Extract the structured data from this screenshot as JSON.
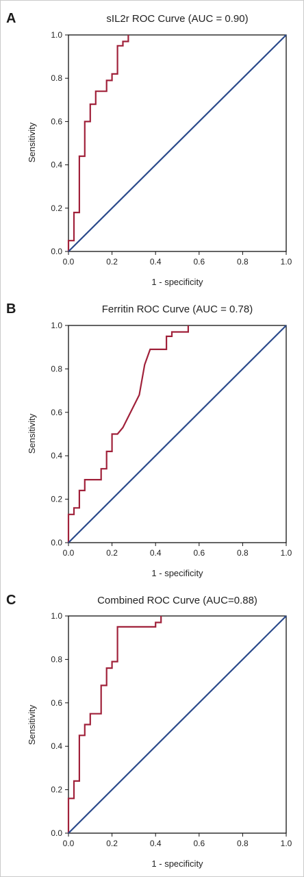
{
  "colors": {
    "roc_line": "#a0213a",
    "diagonal": "#2b4a8b",
    "axes": "#111111"
  },
  "chart_data": [
    {
      "panel_label": "A",
      "type": "line",
      "title": "sIL2r ROC Curve (AUC = 0.90)",
      "xlabel": "1 - specificity",
      "ylabel": "Sensitivity",
      "xlim": [
        0,
        1
      ],
      "ylim": [
        0,
        1
      ],
      "xticks": [
        "0.0",
        "0.2",
        "0.4",
        "0.6",
        "0.8",
        "1.0"
      ],
      "yticks": [
        "0.0",
        "0.2",
        "0.4",
        "0.6",
        "0.8",
        "1.0"
      ],
      "grid": false,
      "series": [
        {
          "role": "roc",
          "x": [
            0,
            0,
            0.025,
            0.025,
            0.05,
            0.05,
            0.075,
            0.075,
            0.1,
            0.1,
            0.125,
            0.125,
            0.175,
            0.175,
            0.2,
            0.2,
            0.225,
            0.225,
            0.25,
            0.25,
            0.275,
            0.275
          ],
          "y": [
            0,
            0.05,
            0.05,
            0.18,
            0.18,
            0.44,
            0.44,
            0.6,
            0.6,
            0.68,
            0.68,
            0.74,
            0.74,
            0.79,
            0.79,
            0.82,
            0.82,
            0.95,
            0.95,
            0.97,
            0.97,
            1.0
          ]
        },
        {
          "role": "reference",
          "x": [
            0,
            1
          ],
          "y": [
            0,
            1
          ]
        }
      ]
    },
    {
      "panel_label": "B",
      "type": "line",
      "title": "Ferritin ROC Curve (AUC = 0.78)",
      "xlabel": "1 - specificity",
      "ylabel": "Sensitivity",
      "xlim": [
        0,
        1
      ],
      "ylim": [
        0,
        1
      ],
      "xticks": [
        "0.0",
        "0.2",
        "0.4",
        "0.6",
        "0.8",
        "1.0"
      ],
      "yticks": [
        "0.0",
        "0.2",
        "0.4",
        "0.6",
        "0.8",
        "1.0"
      ],
      "grid": false,
      "series": [
        {
          "role": "roc",
          "x": [
            0,
            0,
            0.025,
            0.025,
            0.05,
            0.05,
            0.075,
            0.075,
            0.15,
            0.15,
            0.175,
            0.175,
            0.2,
            0.2,
            0.225,
            0.25,
            0.325,
            0.325,
            0.35,
            0.35,
            0.375,
            0.375,
            0.45,
            0.45,
            0.475,
            0.475,
            0.55,
            0.55
          ],
          "y": [
            0,
            0.13,
            0.13,
            0.16,
            0.16,
            0.24,
            0.24,
            0.29,
            0.29,
            0.34,
            0.34,
            0.42,
            0.42,
            0.5,
            0.5,
            0.53,
            0.68,
            0.68,
            0.82,
            0.82,
            0.89,
            0.89,
            0.89,
            0.95,
            0.95,
            0.97,
            0.97,
            1.0
          ]
        },
        {
          "role": "reference",
          "x": [
            0,
            1
          ],
          "y": [
            0,
            1
          ]
        }
      ]
    },
    {
      "panel_label": "C",
      "type": "line",
      "title": "Combined ROC Curve (AUC=0.88)",
      "xlabel": "1 - specificity",
      "ylabel": "Sensitivity",
      "xlim": [
        0,
        1
      ],
      "ylim": [
        0,
        1
      ],
      "xticks": [
        "0.0",
        "0.2",
        "0.4",
        "0.6",
        "0.8",
        "1.0"
      ],
      "yticks": [
        "0.0",
        "0.2",
        "0.4",
        "0.6",
        "0.8",
        "1.0"
      ],
      "grid": false,
      "series": [
        {
          "role": "roc",
          "x": [
            0,
            0,
            0.025,
            0.025,
            0.05,
            0.05,
            0.075,
            0.075,
            0.1,
            0.1,
            0.125,
            0.125,
            0.15,
            0.15,
            0.175,
            0.175,
            0.2,
            0.2,
            0.225,
            0.225,
            0.25,
            0.25,
            0.4,
            0.4,
            0.425,
            0.425
          ],
          "y": [
            0,
            0.16,
            0.16,
            0.24,
            0.24,
            0.45,
            0.45,
            0.5,
            0.5,
            0.55,
            0.55,
            0.55,
            0.55,
            0.68,
            0.68,
            0.76,
            0.76,
            0.79,
            0.79,
            0.95,
            0.95,
            0.95,
            0.95,
            0.97,
            0.97,
            1.0
          ]
        },
        {
          "role": "reference",
          "x": [
            0,
            1
          ],
          "y": [
            0,
            1
          ]
        }
      ]
    }
  ]
}
